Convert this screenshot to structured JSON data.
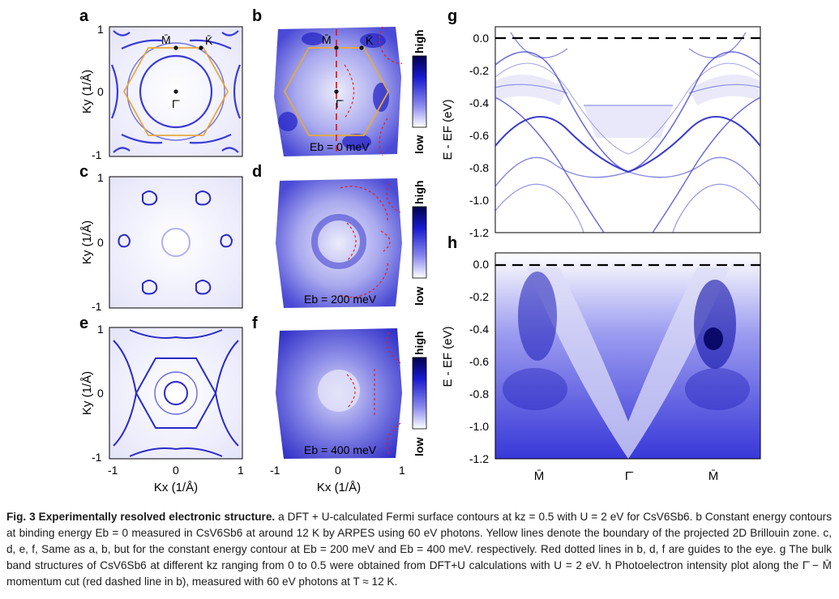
{
  "panels": {
    "a": {
      "letter": "a",
      "ytick_top": "1",
      "ytick_mid": "0",
      "ytick_bot": "-1",
      "ylabel": "Ky (1/Å)",
      "pt_M": "M̄",
      "pt_K": "K̄",
      "pt_G": "Γ̄"
    },
    "b": {
      "letter": "b",
      "pt_M": "M̄",
      "pt_K": "K̄",
      "pt_G": "Γ̄",
      "energy_label": "Eb = 0 meV",
      "cbar_high": "high",
      "cbar_low": "low"
    },
    "c": {
      "letter": "c",
      "ytick_top": "1",
      "ytick_mid": "0",
      "ytick_bot": "-1",
      "ylabel": "Ky (1/Å)"
    },
    "d": {
      "letter": "d",
      "energy_label": "Eb = 200 meV",
      "cbar_high": "high",
      "cbar_low": "low"
    },
    "e": {
      "letter": "e",
      "ytick_top": "1",
      "ytick_mid": "0",
      "ytick_bot": "-1",
      "ylabel": "Ky (1/Å)",
      "xticks": [
        "-1",
        "0",
        "1"
      ],
      "xlabel": "Kx (1/Å)"
    },
    "f": {
      "letter": "f",
      "energy_label": "Eb = 400 meV",
      "cbar_high": "high",
      "cbar_low": "low",
      "xticks": [
        "-1",
        "0",
        "1"
      ],
      "xlabel": "Kx (1/Å)"
    },
    "g": {
      "letter": "g",
      "yticks": [
        "0.0",
        "-0.2",
        "-0.4",
        "-0.6",
        "-0.8",
        "-1.0",
        "-1.2"
      ],
      "ylabel": "E - EF (eV)"
    },
    "h": {
      "letter": "h",
      "yticks": [
        "0.0",
        "-0.2",
        "-0.4",
        "-0.6",
        "-0.8",
        "-1.0",
        "-1.2"
      ],
      "ylabel": "E - EF (eV)",
      "xticks": [
        "M̄",
        "Γ̄",
        "M̄"
      ]
    }
  },
  "caption": {
    "title": "Fig. 3 Experimentally resolved electronic structure.",
    "segments": [
      "a DFT + U-calculated Fermi surface contours at kz = 0.5 with U = 2 eV for CsV6Sb6.",
      "b Constant energy contours at binding energy Eb = 0 measured in CsV6Sb6 at around 12 K by ARPES using 60 eV photons. Yellow lines denote the boundary of the projected 2D Brillouin zone.",
      "c, d, e, f, Same as a, b, but for the constant energy contour at Eb = 200 meV and Eb = 400 meV. respectively. Red dotted lines in b, d, f are guides to the eye.",
      "g The bulk band structures of CsV6Sb6 at different kz ranging from 0 to 0.5 were obtained from DFT+U calculations with U = 2 eV.",
      "h Photoelectron intensity plot along the Γ̄ − M̄ momentum cut (red dashed line in b), measured with 60 eV photons at T ≈ 12 K."
    ]
  }
}
